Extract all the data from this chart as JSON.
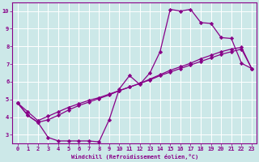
{
  "bg_color": "#cce8e8",
  "grid_color": "#ffffff",
  "line_color": "#880088",
  "marker": "D",
  "markersize": 2.2,
  "linewidth": 0.9,
  "xlabel": "Windchill (Refroidissement éolien,°C)",
  "xlim": [
    -0.5,
    23.5
  ],
  "ylim": [
    2.5,
    10.5
  ],
  "xticks": [
    0,
    1,
    2,
    3,
    4,
    5,
    6,
    7,
    8,
    9,
    10,
    11,
    12,
    13,
    14,
    15,
    16,
    17,
    18,
    19,
    20,
    21,
    22,
    23
  ],
  "yticks": [
    3,
    4,
    5,
    6,
    7,
    8,
    9,
    10
  ],
  "line1_x": [
    0,
    1,
    2,
    3,
    4,
    5,
    6,
    7,
    8,
    9,
    10,
    11,
    12,
    13,
    14,
    15,
    16,
    17,
    18,
    19,
    20,
    21,
    22,
    23
  ],
  "line1_y": [
    4.8,
    4.1,
    3.7,
    2.85,
    2.65,
    2.65,
    2.65,
    2.65,
    2.6,
    3.85,
    5.6,
    6.35,
    5.85,
    6.5,
    7.7,
    10.1,
    10.0,
    10.1,
    9.35,
    9.3,
    8.5,
    8.45,
    7.05,
    6.75
  ],
  "line2_x": [
    0,
    1,
    2,
    3,
    4,
    5,
    6,
    7,
    8,
    9,
    10,
    11,
    12,
    13,
    14,
    15,
    16,
    17,
    18,
    19,
    20,
    21,
    22,
    23
  ],
  "line2_y": [
    4.8,
    4.3,
    3.8,
    4.05,
    4.3,
    4.55,
    4.75,
    4.95,
    5.1,
    5.3,
    5.5,
    5.7,
    5.9,
    6.1,
    6.35,
    6.55,
    6.75,
    6.95,
    7.15,
    7.35,
    7.55,
    7.7,
    7.85,
    6.75
  ],
  "line3_x": [
    0,
    1,
    2,
    3,
    4,
    5,
    6,
    7,
    8,
    9,
    10,
    11,
    12,
    13,
    14,
    15,
    16,
    17,
    18,
    19,
    20,
    21,
    22,
    23
  ],
  "line3_y": [
    4.8,
    4.1,
    3.7,
    3.85,
    4.1,
    4.4,
    4.65,
    4.85,
    5.05,
    5.25,
    5.5,
    5.7,
    5.9,
    6.15,
    6.4,
    6.65,
    6.85,
    7.05,
    7.3,
    7.5,
    7.7,
    7.85,
    7.95,
    6.75
  ]
}
